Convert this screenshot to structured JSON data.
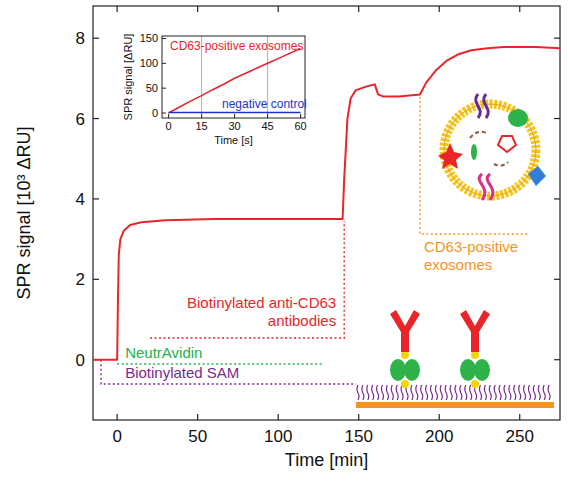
{
  "chart_data": [
    {
      "type": "line",
      "xlabel": "Time [min]",
      "ylabel": "SPR signal [10³ ΔRU]",
      "x": [
        -15,
        0,
        0.5,
        1,
        2,
        4,
        8,
        15,
        30,
        60,
        100,
        140,
        141,
        143,
        145,
        148,
        155,
        160,
        162,
        165,
        175,
        188,
        192,
        198,
        205,
        212,
        220,
        230,
        240,
        260,
        275
      ],
      "series": [
        {
          "color": "#e8262a",
          "values": [
            0,
            0,
            1.5,
            2.6,
            3.0,
            3.2,
            3.35,
            3.42,
            3.47,
            3.5,
            3.5,
            3.5,
            4.5,
            6.0,
            6.5,
            6.7,
            6.8,
            6.85,
            6.6,
            6.55,
            6.55,
            6.6,
            6.9,
            7.2,
            7.45,
            7.6,
            7.7,
            7.75,
            7.78,
            7.78,
            7.75
          ]
        }
      ],
      "xlim": [
        -15,
        275
      ],
      "xticks": [
        0,
        50,
        100,
        150,
        200,
        250
      ],
      "ylim": [
        -1.5,
        8.8
      ],
      "yticks": [
        0,
        2,
        4,
        6,
        8
      ],
      "grid": false,
      "annotations": [
        {
          "text": "Biotinylated SAM",
          "color": "#7b2a8c"
        },
        {
          "text": "NeutrAvidin",
          "color": "#22b14c"
        },
        {
          "text": "Biotinylated anti-CD63 antibodies",
          "color": "#e8262a"
        },
        {
          "text": "CD63-positive exosomes",
          "color": "#f7941d"
        }
      ]
    },
    {
      "type": "line",
      "xlabel": "Time [s]",
      "ylabel": "SPR signal [ΔRU]",
      "x": [
        0,
        5,
        10,
        15,
        20,
        25,
        30,
        35,
        40,
        45,
        50,
        55,
        60
      ],
      "series": [
        {
          "name": "CD63-positive exosomes",
          "color": "#e8262a",
          "values": [
            0,
            12,
            24,
            35,
            47,
            58,
            70,
            80,
            90,
            100,
            110,
            120,
            130
          ]
        },
        {
          "name": "negative control",
          "color": "#2233cc",
          "values": [
            1,
            1,
            1,
            1,
            1,
            1,
            1,
            1,
            1,
            1,
            1,
            1,
            1
          ]
        }
      ],
      "xlim": [
        -3,
        62
      ],
      "xticks": [
        0,
        15,
        30,
        45,
        60
      ],
      "ylim": [
        -10,
        155
      ],
      "yticks": [
        0,
        50,
        100,
        150
      ],
      "vertical_lines": [
        15,
        45
      ],
      "grid": false
    }
  ]
}
